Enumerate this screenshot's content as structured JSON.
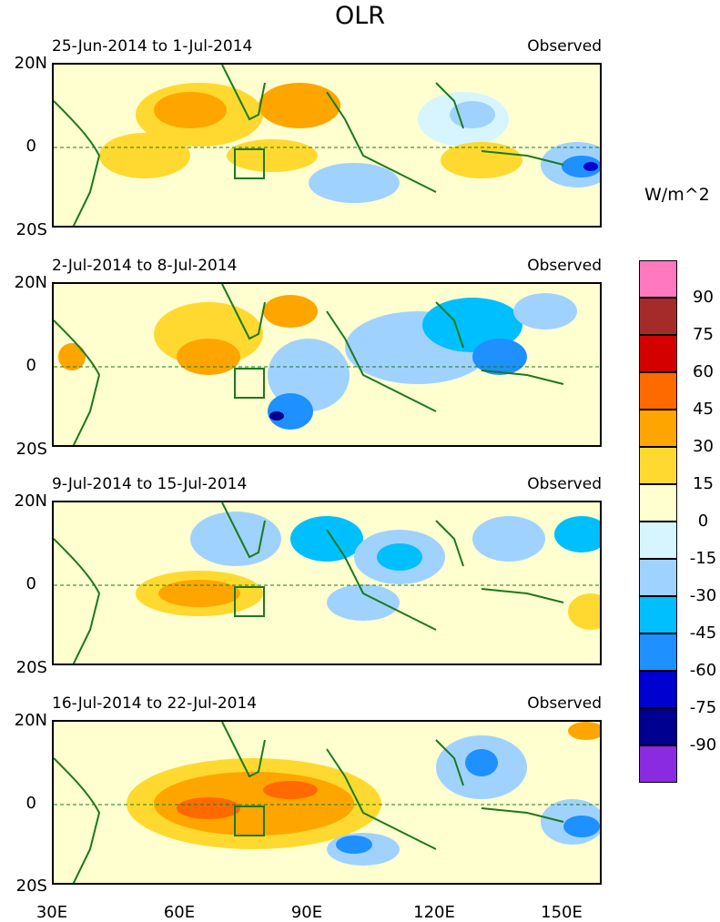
{
  "title": "OLR",
  "units": "W/m^2",
  "lat_labels": {
    "north": "20N",
    "equator": "0",
    "south": "20S"
  },
  "lon_labels": [
    "30E",
    "60E",
    "90E",
    "120E",
    "150E"
  ],
  "panels": [
    {
      "period": "25-Jun-2014 to 1-Jul-2014",
      "label": "Observed"
    },
    {
      "period": "2-Jul-2014 to 8-Jul-2014",
      "label": "Observed"
    },
    {
      "period": "9-Jul-2014 to 15-Jul-2014",
      "label": "Observed"
    },
    {
      "period": "16-Jul-2014 to 22-Jul-2014",
      "label": "Observed"
    }
  ],
  "colorbar": {
    "colors": [
      "#ff78c0",
      "#a52a2a",
      "#d40000",
      "#ff6a00",
      "#ffa500",
      "#ffd92f",
      "#ffffd0",
      "#d6f5ff",
      "#a0d2ff",
      "#00bfff",
      "#1e90ff",
      "#0000d0",
      "#000090",
      "#8a2be2"
    ],
    "labels": [
      "90",
      "75",
      "60",
      "45",
      "30",
      "15",
      "0",
      "-15",
      "-30",
      "-45",
      "-60",
      "-75",
      "-90"
    ]
  },
  "colors": {
    "coastline": "#1a7a1a",
    "equator_line": "#1a7a1a",
    "background": "#ffffd0"
  }
}
